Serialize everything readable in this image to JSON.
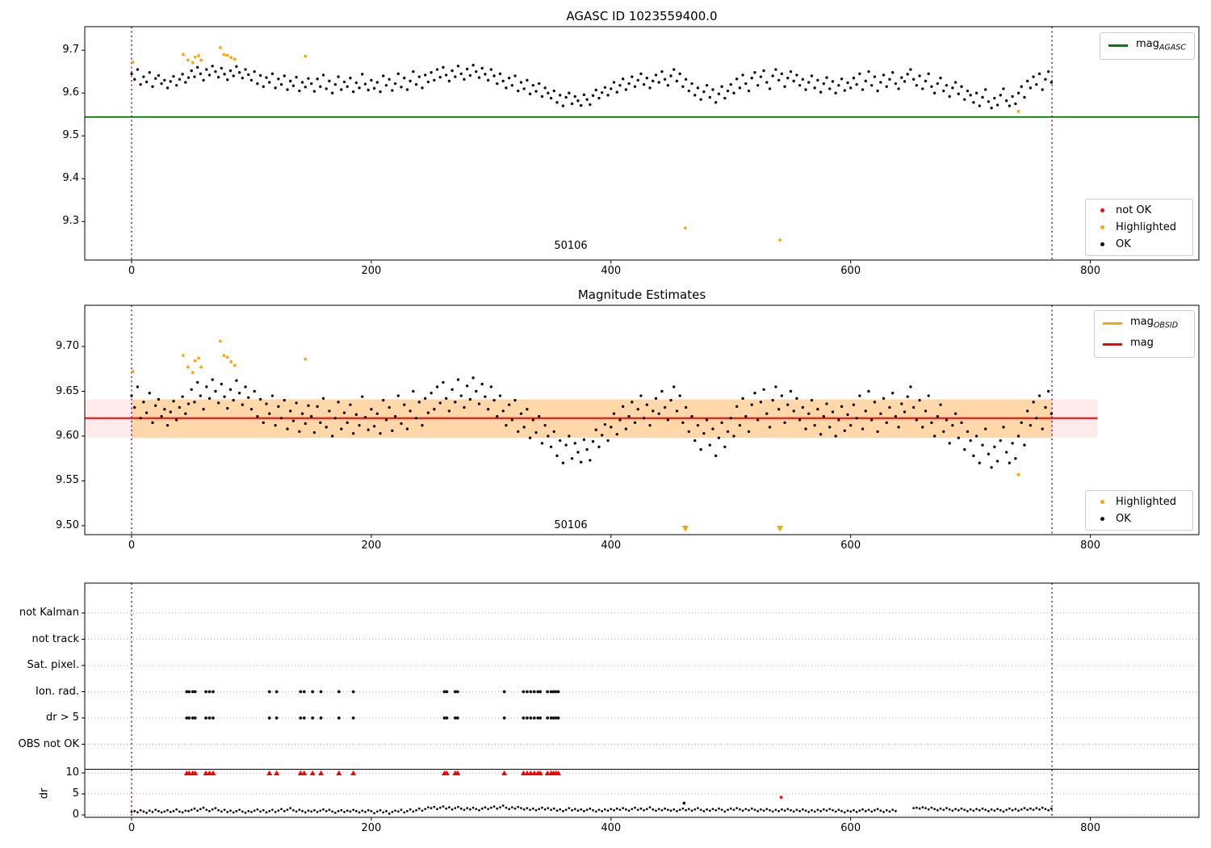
{
  "ui": {
    "titles": {
      "top": "AGASC ID 1023559400.0",
      "middle": "Magnitude Estimates"
    },
    "obsid_label": "50106",
    "dr_axis_label": "dr",
    "colors": {
      "green": "#008000",
      "red": "#ff0000",
      "orange": "#ffa500",
      "purple": "#800080",
      "black": "#111111",
      "band_pink": "rgba(255,0,0,0.08)",
      "band_orange": "rgba(255,165,0,0.28)",
      "grid": "#b0b0b0"
    },
    "legends": {
      "mag_agasc": {
        "main": "mag",
        "sub": "AGASC"
      },
      "status_top": [
        {
          "label": "not OK",
          "color": "#ff0000"
        },
        {
          "label": "Highlighted",
          "color": "#ffa500"
        },
        {
          "label": "OK",
          "color": "#111111"
        }
      ],
      "mag_lines": [
        {
          "main": "mag",
          "sub": "OBSID",
          "color": "#ffa500"
        },
        {
          "main": "mag",
          "sub": "",
          "color": "#ff0000"
        }
      ],
      "status_middle": [
        {
          "label": "Highlighted",
          "color": "#ffa500"
        },
        {
          "label": "OK",
          "color": "#111111"
        }
      ]
    }
  },
  "chart_data": {
    "obs_window_x": [
      0,
      768
    ],
    "samples": {
      "x0": 0,
      "dx": 2.5,
      "mag": [
        9.645,
        9.632,
        9.655,
        9.62,
        9.638,
        9.626,
        9.648,
        9.615,
        9.634,
        9.641,
        9.622,
        9.63,
        9.612,
        9.627,
        9.639,
        9.618,
        9.632,
        9.644,
        9.625,
        9.636,
        9.652,
        9.638,
        9.66,
        9.645,
        9.63,
        9.655,
        9.642,
        9.663,
        9.65,
        9.637,
        9.658,
        9.644,
        9.631,
        9.652,
        9.64,
        9.662,
        9.648,
        9.635,
        9.655,
        9.643,
        9.63,
        9.65,
        9.622,
        9.641,
        9.615,
        9.636,
        9.625,
        9.645,
        9.612,
        9.633,
        9.62,
        9.64,
        9.608,
        9.628,
        9.617,
        9.637,
        9.605,
        9.625,
        9.614,
        9.634,
        9.622,
        9.604,
        9.633,
        9.615,
        9.642,
        9.61,
        9.628,
        9.6,
        9.62,
        9.638,
        9.608,
        9.626,
        9.615,
        9.635,
        9.603,
        9.624,
        9.612,
        9.644,
        9.621,
        9.607,
        9.63,
        9.611,
        9.625,
        9.603,
        9.64,
        9.618,
        9.632,
        9.606,
        9.622,
        9.645,
        9.614,
        9.635,
        9.608,
        9.628,
        9.65,
        9.62,
        9.638,
        9.612,
        9.642,
        9.626,
        9.648,
        9.63,
        9.655,
        9.637,
        9.66,
        9.642,
        9.628,
        9.652,
        9.638,
        9.663,
        9.645,
        9.632,
        9.656,
        9.641,
        9.665,
        9.65,
        9.636,
        9.658,
        9.644,
        9.63,
        9.655,
        9.64,
        9.622,
        9.645,
        9.628,
        9.612,
        9.635,
        9.618,
        9.64,
        9.605,
        9.625,
        9.61,
        9.63,
        9.598,
        9.618,
        9.604,
        9.622,
        9.592,
        9.612,
        9.6,
        9.588,
        9.605,
        9.578,
        9.595,
        9.57,
        9.59,
        9.6,
        9.575,
        9.592,
        9.582,
        9.571,
        9.596,
        9.585,
        9.573,
        9.594,
        9.607,
        9.588,
        9.601,
        9.613,
        9.595,
        9.61,
        9.625,
        9.602,
        9.618,
        9.633,
        9.608,
        9.622,
        9.638,
        9.615,
        9.63,
        9.645,
        9.62,
        9.635,
        9.612,
        9.628,
        9.642,
        9.625,
        9.65,
        9.632,
        9.618,
        9.64,
        9.655,
        9.628,
        9.645,
        9.615,
        9.632,
        9.605,
        9.622,
        9.595,
        9.612,
        9.585,
        9.603,
        9.618,
        9.59,
        9.608,
        9.578,
        9.598,
        9.615,
        9.588,
        9.605,
        9.62,
        9.6,
        9.633,
        9.612,
        9.642,
        9.622,
        9.605,
        9.635,
        9.648,
        9.618,
        9.638,
        9.652,
        9.625,
        9.61,
        9.64,
        9.655,
        9.63,
        9.645,
        9.615,
        9.635,
        9.65,
        9.628,
        9.642,
        9.618,
        9.632,
        9.608,
        9.625,
        9.64,
        9.612,
        9.63,
        9.602,
        9.622,
        9.636,
        9.61,
        9.627,
        9.6,
        9.618,
        9.633,
        9.606,
        9.624,
        9.612,
        9.635,
        9.62,
        9.645,
        9.608,
        9.628,
        9.65,
        9.618,
        9.638,
        9.605,
        9.625,
        9.642,
        9.615,
        9.632,
        9.648,
        9.622,
        9.61,
        9.636,
        9.627,
        9.644,
        9.655,
        9.632,
        9.618,
        9.64,
        9.61,
        9.628,
        9.645,
        9.615,
        9.6,
        9.622,
        9.635,
        9.605,
        9.618,
        9.592,
        9.612,
        9.625,
        9.598,
        9.615,
        9.585,
        9.605,
        9.595,
        9.578,
        9.6,
        9.57,
        9.59,
        9.608,
        9.58,
        9.565,
        9.588,
        9.572,
        9.595,
        9.61,
        9.582,
        9.57,
        9.592,
        9.575,
        9.6,
        9.615,
        9.59,
        9.628,
        9.612,
        9.638,
        9.62,
        9.645,
        9.608,
        9.632,
        9.65,
        9.625
      ],
      "dr": [
        0.7,
        0.9,
        0.6,
        1.1,
        0.8,
        0.5,
        1.0,
        0.7,
        1.2,
        0.9,
        0.6,
        0.8,
        1.1,
        0.7,
        0.9,
        1.3,
        0.8,
        0.6,
        1.0,
        0.9,
        1.2,
        1.5,
        1.0,
        1.4,
        1.7,
        1.2,
        0.9,
        1.3,
        1.6,
        1.1,
        0.8,
        1.2,
        0.7,
        1.0,
        0.6,
        0.9,
        1.2,
        0.8,
        0.5,
        0.9,
        0.7,
        1.0,
        1.3,
        0.8,
        1.1,
        0.6,
        0.9,
        1.2,
        0.7,
        1.0,
        1.4,
        0.9,
        1.2,
        1.6,
        1.1,
        0.8,
        1.2,
        0.9,
        0.6,
        1.0,
        0.8,
        1.1,
        0.7,
        1.0,
        1.3,
        0.9,
        1.2,
        0.8,
        0.5,
        0.9,
        1.1,
        0.7,
        1.0,
        0.8,
        1.2,
        0.9,
        0.6,
        1.0,
        0.7,
        1.1,
        0.9,
        0.4,
        0.8,
        1.1,
        0.6,
        0.9,
        0.3,
        0.7,
        1.0,
        0.8,
        1.2,
        0.6,
        0.9,
        1.3,
        0.8,
        1.1,
        1.5,
        1.0,
        1.4,
        1.8,
        1.6,
        1.9,
        1.4,
        1.7,
        2.0,
        1.5,
        1.8,
        1.3,
        1.6,
        1.9,
        1.5,
        1.2,
        1.6,
        1.3,
        1.7,
        1.4,
        1.1,
        1.5,
        1.8,
        1.4,
        1.7,
        2.0,
        1.5,
        1.8,
        2.2,
        1.7,
        1.4,
        1.8,
        1.5,
        1.9,
        1.6,
        1.3,
        1.6,
        1.2,
        1.5,
        1.1,
        1.4,
        1.7,
        1.3,
        1.6,
        1.2,
        1.5,
        1.0,
        1.3,
        0.9,
        1.2,
        1.6,
        1.1,
        1.4,
        1.0,
        1.3,
        0.9,
        1.2,
        1.5,
        1.1,
        0.8,
        1.2,
        0.9,
        1.3,
        1.0,
        1.4,
        1.1,
        1.5,
        1.2,
        1.6,
        1.3,
        1.0,
        1.4,
        1.7,
        1.2,
        1.5,
        1.1,
        1.4,
        1.8,
        1.3,
        1.0,
        1.4,
        1.1,
        1.5,
        1.2,
        1.0,
        1.3,
        0.9,
        1.2,
        1.5,
        1.1,
        1.4,
        1.0,
        1.3,
        1.6,
        1.2,
        0.9,
        1.3,
        1.0,
        1.4,
        1.1,
        1.5,
        1.2,
        0.8,
        1.2,
        1.5,
        1.2,
        1.6,
        1.3,
        1.0,
        1.4,
        1.1,
        1.5,
        1.2,
        0.9,
        1.3,
        1.0,
        1.4,
        1.1,
        0.8,
        1.2,
        0.9,
        1.3,
        1.0,
        1.4,
        1.1,
        0.8,
        1.2,
        0.9,
        1.3,
        1.0,
        0.7,
        1.1,
        0.8,
        1.2,
        0.9,
        1.3,
        1.0,
        1.4,
        1.1,
        0.8,
        1.2,
        0.9,
        0.6,
        1.0,
        0.8,
        1.1,
        0.7,
        1.0,
        1.3,
        0.9,
        1.2,
        0.8,
        1.1,
        1.4,
        1.0,
        0.7,
        1.1,
        0.8,
        1.2,
        0.9,
        null,
        null,
        null,
        null,
        null,
        1.6,
        1.7,
        1.5,
        1.8,
        1.6,
        1.3,
        1.7,
        1.4,
        1.1,
        1.5,
        1.2,
        1.6,
        1.3,
        1.0,
        1.4,
        1.1,
        1.5,
        1.2,
        0.9,
        1.3,
        1.0,
        1.4,
        1.1,
        1.5,
        1.2,
        0.9,
        1.3,
        1.0,
        1.4,
        1.1,
        0.8,
        1.2,
        1.5,
        1.1,
        1.4,
        1.0,
        1.3,
        1.6,
        1.2,
        1.5,
        1.2,
        1.6,
        1.3,
        1.7,
        1.4,
        1.1,
        1.5
      ]
    },
    "highlighted": [
      [
        1,
        9.672
      ],
      [
        43,
        9.69
      ],
      [
        47,
        9.677
      ],
      [
        51,
        9.671
      ],
      [
        53,
        9.684
      ],
      [
        56,
        9.687
      ],
      [
        58,
        9.677
      ],
      [
        74,
        9.706
      ],
      [
        77,
        9.69
      ],
      [
        80,
        9.688
      ],
      [
        83,
        9.683
      ],
      [
        86,
        9.679
      ],
      [
        145,
        9.686
      ],
      [
        462,
        9.285
      ],
      [
        541,
        9.257
      ],
      [
        740,
        9.557
      ]
    ],
    "top": {
      "type": "scatter",
      "title": "AGASC ID 1023559400.0",
      "xlim": [
        -40,
        890
      ],
      "ylim": [
        9.21,
        9.755
      ],
      "xticks": [
        0,
        200,
        400,
        600,
        800
      ],
      "xtick_labels": [
        "0",
        "200",
        "400",
        "600",
        "800"
      ],
      "ytick_values": [
        9.7,
        9.6,
        9.5,
        9.4,
        9.3
      ],
      "ytick_labels": [
        "9.7",
        "9.6",
        "9.5",
        "9.4",
        "9.3"
      ],
      "mag_agasc": 9.544
    },
    "middle": {
      "type": "scatter",
      "title": "Magnitude Estimates",
      "xlim": [
        -40,
        890
      ],
      "ylim": [
        9.49,
        9.746
      ],
      "xticks": [
        0,
        200,
        400,
        600,
        800
      ],
      "xtick_labels": [
        "0",
        "200",
        "400",
        "600",
        "800"
      ],
      "ytick_values": [
        9.7,
        9.65,
        9.6,
        9.55,
        9.5
      ],
      "ytick_labels": [
        "9.70",
        "9.65",
        "9.60",
        "9.55",
        "9.50"
      ],
      "mag": 9.62,
      "mag_err_band": [
        9.598,
        9.641
      ],
      "band_x_full": [
        -39,
        806
      ],
      "band_x_obsid": [
        0,
        768
      ],
      "clipped_low_x": [
        462,
        541
      ]
    },
    "bottom": {
      "type": "flags",
      "rows": [
        "not Kalman",
        "not track",
        "Sat. pixel.",
        "Ion. rad.",
        "dr > 5",
        "OBS not OK"
      ],
      "rows_with_marks": [
        3,
        4
      ],
      "flags_x": [
        46,
        48,
        51,
        53,
        62,
        65,
        68,
        115,
        121,
        141,
        144,
        151,
        158,
        173,
        185,
        261,
        263,
        270,
        272,
        311,
        327,
        330,
        333,
        336,
        339,
        341,
        347,
        350,
        352,
        354,
        356
      ],
      "dr_clip_value": 10,
      "dr_ticks": [
        10,
        5,
        0
      ],
      "dr_tick_labels": [
        "10",
        "5",
        "0"
      ],
      "xticks": [
        0,
        200,
        400,
        600,
        800
      ],
      "xtick_labels": [
        "0",
        "200",
        "400",
        "600",
        "800"
      ],
      "dr_outlier_ok": [
        [
          461,
          2.8
        ]
      ],
      "dr_outlier_not_ok": [
        [
          542,
          4.2
        ]
      ]
    }
  }
}
